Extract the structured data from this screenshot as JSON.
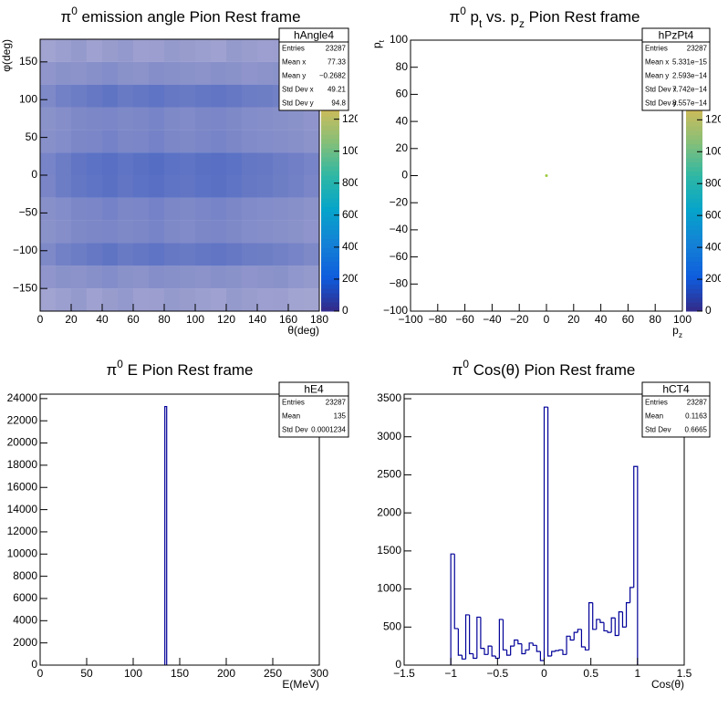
{
  "chart_data": [
    {
      "type": "heatmap",
      "title": [
        "π",
        "0",
        " emission angle Pion Rest frame"
      ],
      "title_style": [
        "normal",
        "sup",
        "normal"
      ],
      "xlabel": "θ(deg)",
      "ylabel": "φ(deg)",
      "xlim": [
        0,
        180
      ],
      "xticks": [
        0,
        20,
        40,
        60,
        80,
        100,
        120,
        140,
        160,
        180
      ],
      "ylim": [
        -180,
        180
      ],
      "yticks": [
        {
          "value": -150,
          "label": "−150"
        },
        {
          "value": -100,
          "label": "−100"
        },
        {
          "value": -50,
          "label": "−50"
        },
        0,
        50,
        100,
        150
      ],
      "x_edges": [
        0,
        10,
        20,
        30,
        40,
        50,
        60,
        70,
        80,
        90,
        100,
        110,
        120,
        130,
        140,
        150,
        160,
        170,
        180
      ],
      "y_edges": [
        -180,
        -150,
        -120,
        -90,
        -60,
        -30,
        0,
        30,
        60,
        90,
        120,
        150,
        180
      ],
      "z": [
        [
          40,
          45,
          50,
          42,
          48,
          52,
          44,
          46,
          50,
          48,
          45,
          42,
          50,
          47,
          44,
          46,
          40,
          38
        ],
        [
          55,
          60,
          58,
          62,
          66,
          60,
          58,
          64,
          62,
          60,
          58,
          62,
          60,
          56,
          58,
          60,
          54,
          50
        ],
        [
          70,
          80,
          85,
          90,
          95,
          88,
          92,
          96,
          90,
          88,
          92,
          94,
          90,
          86,
          84,
          80,
          76,
          70
        ],
        [
          60,
          64,
          70,
          72,
          74,
          70,
          72,
          76,
          70,
          68,
          72,
          74,
          70,
          66,
          64,
          62,
          60,
          56
        ],
        [
          62,
          66,
          72,
          74,
          78,
          72,
          74,
          78,
          72,
          70,
          74,
          76,
          72,
          68,
          66,
          64,
          62,
          58
        ],
        [
          75,
          85,
          92,
          96,
          100,
          94,
          98,
          102,
          96,
          94,
          98,
          100,
          96,
          90,
          88,
          84,
          80,
          74
        ],
        [
          76,
          86,
          94,
          98,
          102,
          96,
          100,
          104,
          98,
          96,
          100,
          102,
          98,
          92,
          90,
          86,
          82,
          76
        ],
        [
          62,
          66,
          72,
          74,
          78,
          72,
          74,
          78,
          72,
          70,
          74,
          76,
          72,
          68,
          66,
          64,
          62,
          58
        ],
        [
          60,
          64,
          70,
          72,
          74,
          70,
          72,
          76,
          70,
          68,
          72,
          74,
          70,
          66,
          64,
          62,
          60,
          56
        ],
        [
          70,
          80,
          85,
          90,
          95,
          88,
          92,
          96,
          90,
          88,
          92,
          94,
          90,
          86,
          84,
          80,
          76,
          70
        ],
        [
          55,
          60,
          58,
          62,
          66,
          60,
          58,
          64,
          62,
          60,
          58,
          62,
          60,
          56,
          58,
          60,
          54,
          50
        ],
        [
          40,
          45,
          50,
          42,
          48,
          52,
          44,
          46,
          50,
          48,
          45,
          42,
          50,
          47,
          44,
          46,
          40,
          38
        ]
      ],
      "zlim": [
        0,
        1700
      ],
      "zticks": [
        0,
        200,
        400,
        600,
        800,
        1000,
        1200
      ],
      "palette": [
        "#352a87",
        "#0f5cdd",
        "#1481d6",
        "#06a4ca",
        "#2eb7a4",
        "#87bf77",
        "#d1bb59",
        "#fec832",
        "#f9fb0e"
      ],
      "stats": {
        "name": "hAngle4",
        "rows": [
          [
            "Entries",
            "23287"
          ],
          [
            "Mean x",
            "77.33"
          ],
          [
            "Mean y",
            "−0.2682"
          ],
          [
            "Std Dev x",
            "49.21"
          ],
          [
            "Std Dev y",
            "94.8"
          ]
        ]
      }
    },
    {
      "type": "scatter",
      "title": [
        "π",
        "0",
        " p",
        "t",
        " vs. p",
        "z",
        " Pion Rest frame"
      ],
      "title_style": [
        "normal",
        "sup",
        "normal",
        "sub",
        "normal",
        "sub",
        "normal"
      ],
      "xlabel": [
        "p",
        "z"
      ],
      "xlabel_style": [
        "normal",
        "sub"
      ],
      "ylabel": [
        "p",
        "t"
      ],
      "ylabel_style": [
        "normal",
        "sub"
      ],
      "xlim": [
        -100,
        100
      ],
      "xticks": [
        {
          "value": -100,
          "label": "−100"
        },
        {
          "value": -80,
          "label": "−80"
        },
        {
          "value": -60,
          "label": "−60"
        },
        {
          "value": -40,
          "label": "−40"
        },
        {
          "value": -20,
          "label": "−20"
        },
        0,
        20,
        40,
        60,
        80,
        100
      ],
      "ylim": [
        -100,
        100
      ],
      "yticks": [
        {
          "value": -100,
          "label": "−100"
        },
        {
          "value": -80,
          "label": "−80"
        },
        {
          "value": -60,
          "label": "−60"
        },
        {
          "value": -40,
          "label": "−40"
        },
        {
          "value": -20,
          "label": "−20"
        },
        0,
        20,
        40,
        60,
        80,
        100
      ],
      "x": [
        0
      ],
      "y": [
        0
      ],
      "color": "#9ccb3c",
      "zlim": [
        0,
        1700
      ],
      "zticks": [
        0,
        200,
        400,
        600,
        800,
        1000,
        1200
      ],
      "palette": [
        "#352a87",
        "#0f5cdd",
        "#1481d6",
        "#06a4ca",
        "#2eb7a4",
        "#87bf77",
        "#d1bb59",
        "#fec832",
        "#f9fb0e"
      ],
      "stats": {
        "name": "hPzPt4",
        "rows": [
          [
            "Entries",
            "23287"
          ],
          [
            "Mean x",
            "5.331e−15"
          ],
          [
            "Mean y",
            "2.593e−14"
          ],
          [
            "Std Dev x",
            "7.742e−14"
          ],
          [
            "Std Dev y",
            "8.557e−14"
          ]
        ]
      }
    },
    {
      "type": "histogram",
      "title": [
        "π",
        "0",
        " E Pion Rest frame"
      ],
      "title_style": [
        "normal",
        "sup",
        "normal"
      ],
      "xlabel": "E(MeV)",
      "xlim": [
        0,
        300
      ],
      "xticks": [
        0,
        50,
        100,
        150,
        200,
        250,
        300
      ],
      "ylim": [
        0,
        24400
      ],
      "yticks": [
        0,
        2000,
        4000,
        6000,
        8000,
        10000,
        12000,
        14000,
        16000,
        18000,
        20000,
        22000,
        24000
      ],
      "bins": [
        134,
        136
      ],
      "counts": [
        23287
      ],
      "color": "#000099",
      "stats": {
        "name": "hE4",
        "rows": [
          [
            "Entries",
            "23287"
          ],
          [
            "Mean",
            "135"
          ],
          [
            "Std Dev",
            "0.0001234"
          ]
        ]
      }
    },
    {
      "type": "histogram",
      "title": [
        "π",
        "0",
        " Cos(θ) Pion Rest frame"
      ],
      "title_style": [
        "normal",
        "sup",
        "normal"
      ],
      "xlabel": "Cos(θ)",
      "xlim": [
        -1.5,
        1.5
      ],
      "xticks": [
        {
          "value": -1.5,
          "label": "−1.5"
        },
        {
          "value": -1,
          "label": "−1"
        },
        {
          "value": -0.5,
          "label": "−0.5"
        },
        0,
        0.5,
        1,
        1.5
      ],
      "ylim": [
        0,
        3560
      ],
      "yticks": [
        0,
        500,
        1000,
        1500,
        2000,
        2500,
        3000,
        3500
      ],
      "bins": [
        -1,
        -0.96,
        -0.92,
        -0.88,
        -0.84,
        -0.8,
        -0.76,
        -0.72,
        -0.68,
        -0.64,
        -0.6,
        -0.56,
        -0.52,
        -0.48,
        -0.44,
        -0.4,
        -0.36,
        -0.32,
        -0.28,
        -0.24,
        -0.2,
        -0.16,
        -0.12,
        -0.08,
        -0.04,
        0,
        0.04,
        0.08,
        0.12,
        0.16,
        0.2,
        0.24,
        0.28,
        0.32,
        0.36,
        0.4,
        0.44,
        0.48,
        0.52,
        0.56,
        0.6,
        0.64,
        0.68,
        0.72,
        0.76,
        0.8,
        0.84,
        0.88,
        0.92,
        0.96,
        1
      ],
      "counts": [
        1460,
        480,
        130,
        80,
        660,
        150,
        90,
        630,
        220,
        140,
        250,
        120,
        90,
        600,
        200,
        130,
        250,
        330,
        280,
        150,
        200,
        290,
        260,
        180,
        60,
        3390,
        120,
        180,
        190,
        200,
        140,
        380,
        330,
        430,
        470,
        240,
        200,
        820,
        470,
        600,
        560,
        450,
        430,
        620,
        390,
        700,
        500,
        820,
        1020,
        2610
      ],
      "color": "#000099",
      "stats": {
        "name": "hCT4",
        "rows": [
          [
            "Entries",
            "23287"
          ],
          [
            "Mean",
            "0.1163"
          ],
          [
            "Std Dev",
            "0.6665"
          ]
        ]
      }
    }
  ]
}
